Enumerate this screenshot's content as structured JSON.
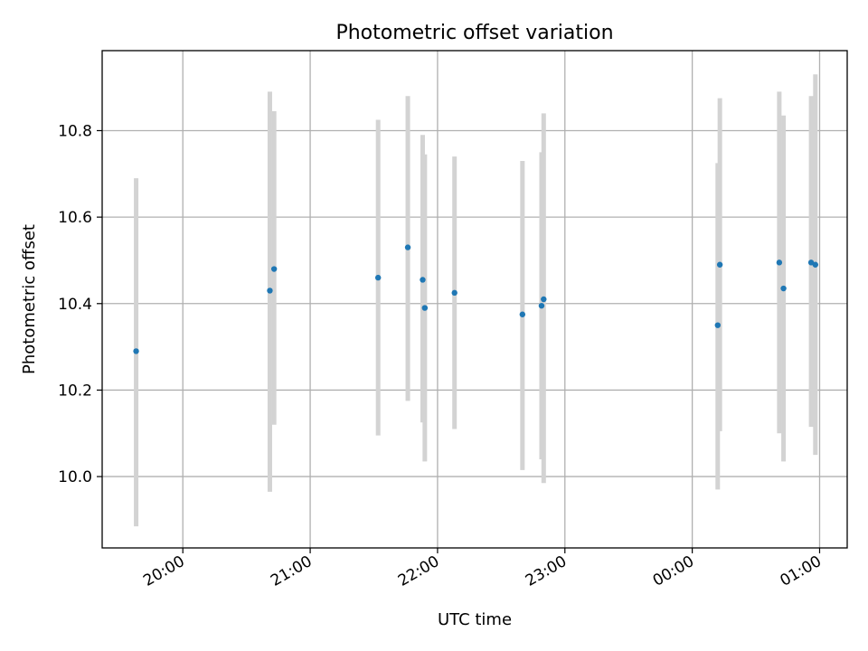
{
  "chart_data": {
    "type": "scatter",
    "title": "Photometric offset variation",
    "xlabel": "UTC time",
    "ylabel": "Photometric offset",
    "grid": true,
    "colors": {
      "points": "#1f77b4",
      "errorbars": "#d3d3d3",
      "grid": "#b0b0b0"
    },
    "xlim": [
      "19:22",
      "01:13"
    ],
    "ylim": [
      9.835,
      10.985
    ],
    "xticks": [
      "20:00",
      "21:00",
      "22:00",
      "23:00",
      "00:00",
      "01:00"
    ],
    "yticks": [
      10.0,
      10.2,
      10.4,
      10.6,
      10.8
    ],
    "series": [
      {
        "points": [
          {
            "x": "19:38",
            "y": 10.29,
            "lo": 9.885,
            "hi": 10.69
          },
          {
            "x": "20:41",
            "y": 10.43,
            "lo": 9.965,
            "hi": 10.89
          },
          {
            "x": "20:43",
            "y": 10.48,
            "lo": 10.12,
            "hi": 10.845
          },
          {
            "x": "21:32",
            "y": 10.46,
            "lo": 10.095,
            "hi": 10.825
          },
          {
            "x": "21:46",
            "y": 10.53,
            "lo": 10.175,
            "hi": 10.88
          },
          {
            "x": "21:53",
            "y": 10.455,
            "lo": 10.125,
            "hi": 10.79
          },
          {
            "x": "21:54",
            "y": 10.39,
            "lo": 10.035,
            "hi": 10.745
          },
          {
            "x": "22:08",
            "y": 10.425,
            "lo": 10.11,
            "hi": 10.74
          },
          {
            "x": "22:40",
            "y": 10.375,
            "lo": 10.015,
            "hi": 10.73
          },
          {
            "x": "22:49",
            "y": 10.395,
            "lo": 10.04,
            "hi": 10.75
          },
          {
            "x": "22:50",
            "y": 10.41,
            "lo": 9.985,
            "hi": 10.84
          },
          {
            "x": "00:12",
            "y": 10.35,
            "lo": 9.97,
            "hi": 10.725
          },
          {
            "x": "00:13",
            "y": 10.49,
            "lo": 10.105,
            "hi": 10.875
          },
          {
            "x": "00:41",
            "y": 10.495,
            "lo": 10.1,
            "hi": 10.89
          },
          {
            "x": "00:43",
            "y": 10.435,
            "lo": 10.035,
            "hi": 10.835
          },
          {
            "x": "00:56",
            "y": 10.495,
            "lo": 10.115,
            "hi": 10.88
          },
          {
            "x": "00:58",
            "y": 10.49,
            "lo": 10.05,
            "hi": 10.93
          }
        ]
      }
    ]
  }
}
